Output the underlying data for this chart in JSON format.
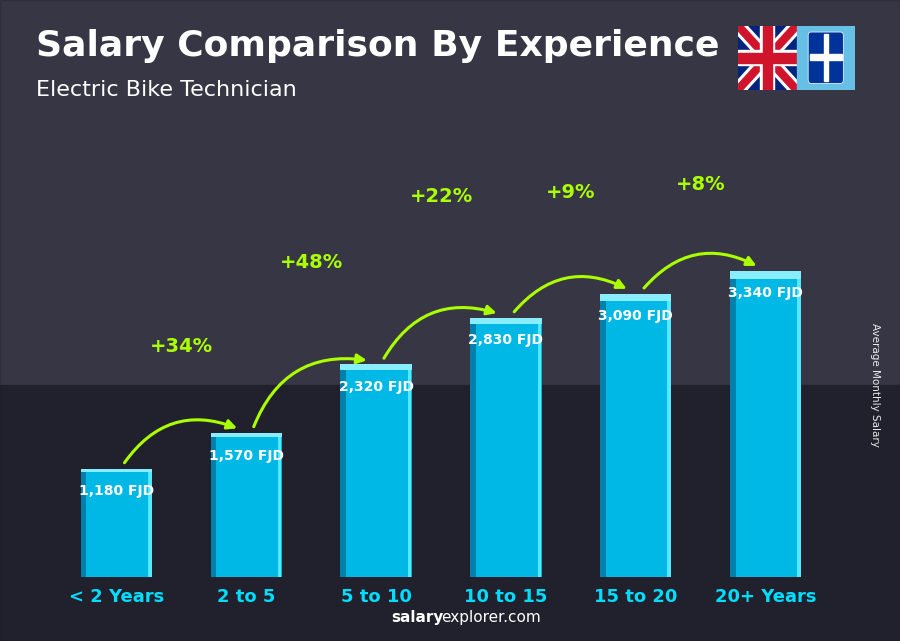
{
  "title": "Salary Comparison By Experience",
  "subtitle": "Electric Bike Technician",
  "categories": [
    "< 2 Years",
    "2 to 5",
    "5 to 10",
    "10 to 15",
    "15 to 20",
    "20+ Years"
  ],
  "values": [
    1180,
    1570,
    2320,
    2830,
    3090,
    3340
  ],
  "value_labels": [
    "1,180 FJD",
    "1,570 FJD",
    "2,320 FJD",
    "2,830 FJD",
    "3,090 FJD",
    "3,340 FJD"
  ],
  "pct_labels": [
    "+34%",
    "+48%",
    "+22%",
    "+9%",
    "+8%"
  ],
  "bar_color_main": "#00b8e6",
  "bar_color_light": "#33d4f5",
  "bar_color_dark": "#0080aa",
  "bar_color_highlight": "#55e8ff",
  "bg_color": "#3a3a4a",
  "title_color": "#ffffff",
  "subtitle_color": "#ffffff",
  "value_label_color": "#ffffff",
  "pct_color": "#aaff00",
  "xlabel_color": "#00ddff",
  "ylabel": "Average Monthly Salary",
  "footer_normal": "explorer.com",
  "footer_bold": "salary",
  "ylim_max": 4200,
  "title_fontsize": 26,
  "subtitle_fontsize": 16,
  "bar_width": 0.55,
  "value_fontsize": 10,
  "pct_fontsize": 14,
  "cat_fontsize": 13
}
